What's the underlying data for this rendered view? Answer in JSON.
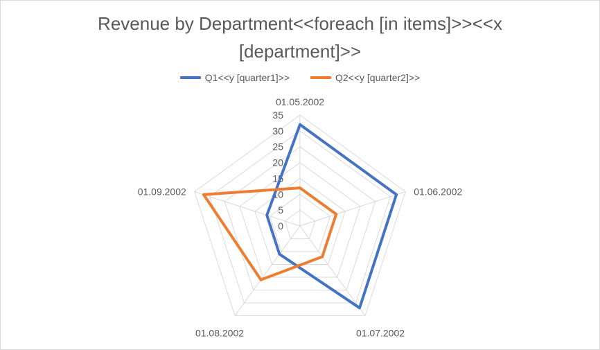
{
  "chart_data": {
    "type": "radar",
    "title_line1": "Revenue by Department<<foreach [in items]>><<x",
    "title_line2": "[department]>>",
    "categories": [
      "01.05.2002",
      "01.06.2002",
      "01.07.2002",
      "01.08.2002",
      "01.09.2002"
    ],
    "series": [
      {
        "name": "Q1<<y [quarter1]>>",
        "color": "#4472c4",
        "values": [
          32,
          32,
          32,
          11,
          11
        ]
      },
      {
        "name": "Q2<<y [quarter2]>>",
        "color": "#ed7d31",
        "values": [
          12,
          12,
          12,
          21,
          32
        ]
      }
    ],
    "rlim": [
      0,
      35
    ],
    "ticks": [
      "0",
      "5",
      "10",
      "15",
      "20",
      "25",
      "30",
      "35"
    ],
    "grid": true,
    "legend_position": "top"
  }
}
